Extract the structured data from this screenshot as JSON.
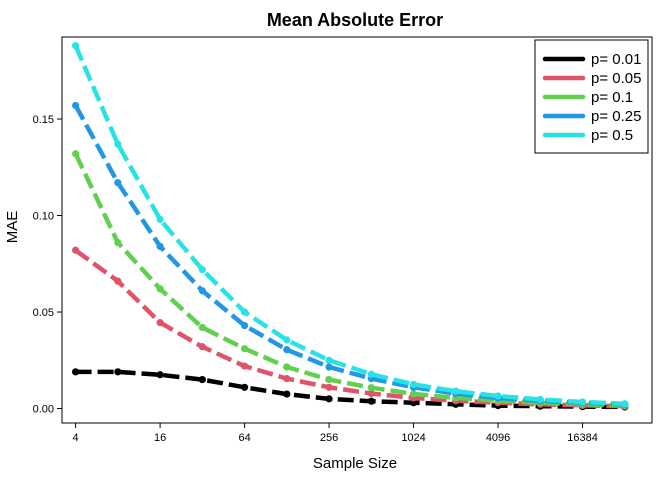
{
  "chart_data": {
    "type": "line",
    "title": "Mean Absolute Error",
    "xlabel": "Sample Size",
    "ylabel": "MAE",
    "x_scale": "log2",
    "x_tick_labels": [
      "4",
      "16",
      "64",
      "256",
      "1024",
      "4096",
      "16384"
    ],
    "x_tick_values": [
      4,
      16,
      64,
      256,
      1024,
      4096,
      16384
    ],
    "y_tick_labels": [
      "0.00",
      "0.05",
      "0.10",
      "0.15"
    ],
    "y_tick_values": [
      0,
      0.05,
      0.1,
      0.15
    ],
    "xlim": [
      3.2,
      51200
    ],
    "ylim": [
      -0.0075,
      0.1925
    ],
    "grid": false,
    "legend_position": "top-right",
    "x": [
      4,
      8,
      16,
      32,
      64,
      128,
      256,
      512,
      1024,
      2048,
      4096,
      8192,
      16384,
      32768
    ],
    "series": [
      {
        "name": "p= 0.01",
        "color": "#000000",
        "values": [
          0.019,
          0.019,
          0.0175,
          0.015,
          0.011,
          0.0075,
          0.005,
          0.0038,
          0.003,
          0.0022,
          0.0015,
          0.0012,
          0.001,
          0.0008
        ]
      },
      {
        "name": "p= 0.05",
        "color": "#DF536B",
        "values": [
          0.082,
          0.066,
          0.0445,
          0.032,
          0.022,
          0.0155,
          0.011,
          0.0078,
          0.0055,
          0.004,
          0.003,
          0.0022,
          0.0016,
          0.0012
        ]
      },
      {
        "name": "p= 0.1",
        "color": "#61D04F",
        "values": [
          0.132,
          0.086,
          0.062,
          0.042,
          0.031,
          0.0215,
          0.015,
          0.0108,
          0.0076,
          0.0055,
          0.004,
          0.003,
          0.0022,
          0.0016
        ]
      },
      {
        "name": "p= 0.25",
        "color": "#2297E6",
        "values": [
          0.157,
          0.117,
          0.084,
          0.061,
          0.043,
          0.0305,
          0.0215,
          0.0155,
          0.011,
          0.0078,
          0.0055,
          0.004,
          0.003,
          0.0022
        ]
      },
      {
        "name": "p= 0.5",
        "color": "#28E2E5",
        "values": [
          0.188,
          0.137,
          0.098,
          0.072,
          0.05,
          0.0355,
          0.025,
          0.0178,
          0.0125,
          0.009,
          0.0065,
          0.0047,
          0.0034,
          0.0025
        ]
      }
    ]
  }
}
